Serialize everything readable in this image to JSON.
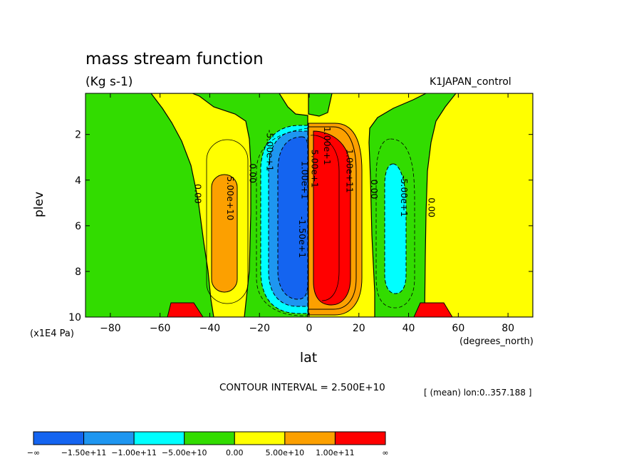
{
  "chart_data": {
    "type": "contour",
    "title": "mass stream function",
    "units": "(Kg s-1)",
    "run_label": "K1JAPAN_control",
    "xlabel": "lat",
    "x_units": "(degrees_north)",
    "ylabel": "plev",
    "y_units": "(x1E4 Pa)",
    "xlim": [
      -90,
      90
    ],
    "ylim": [
      10,
      0.2
    ],
    "x_ticks": [
      -80,
      -60,
      -40,
      -20,
      0,
      20,
      40,
      60,
      80
    ],
    "x_tick_labels": [
      "−80",
      "−60",
      "−40",
      "−20",
      "0",
      "20",
      "40",
      "60",
      "80"
    ],
    "y_ticks": [
      2,
      4,
      6,
      8,
      10
    ],
    "y_tick_labels": [
      "2",
      "4",
      "6",
      "8",
      "10"
    ],
    "contour_interval_text": "CONTOUR INTERVAL = 2.500E+10",
    "mean_note": "[ (mean) lon:0..357.188 ]",
    "contour_labels": [
      {
        "text": "0.00",
        "lat": -46,
        "plev": 4.6
      },
      {
        "text": "5.00e+10",
        "lat": -33,
        "plev": 4.8
      },
      {
        "text": "0.00",
        "lat": -24,
        "plev": 3.7
      },
      {
        "text": "-5.00e+1",
        "lat": -17,
        "plev": 2.7
      },
      {
        "text": "1.00e+1",
        "lat": -3,
        "plev": 4.0
      },
      {
        "text": "-1.50e+1",
        "lat": -4,
        "plev": 6.5
      },
      {
        "text": "5.00e+1",
        "lat": 1,
        "plev": 3.5
      },
      {
        "text": "1.00e+1",
        "lat": 6,
        "plev": 2.5
      },
      {
        "text": "1.00e+11",
        "lat": 15,
        "plev": 3.6
      },
      {
        "text": "0.00",
        "lat": 25,
        "plev": 4.4
      },
      {
        "text": "-5.00e+1",
        "lat": 37,
        "plev": 4.7
      },
      {
        "text": "0.00",
        "lat": 48,
        "plev": 5.2
      }
    ],
    "fields": [
      {
        "name": "southern positive cell",
        "sign": "positive",
        "center_lat": -33,
        "center_plev": 6.2,
        "peak_value": 60000000000.0
      },
      {
        "name": "southern Hadley cell",
        "sign": "negative",
        "center_lat": -10,
        "center_plev": 6.0,
        "peak_value": -170000000000.0
      },
      {
        "name": "northern Hadley cell",
        "sign": "positive",
        "center_lat": 10,
        "center_plev": 5.8,
        "peak_value": 160000000000.0
      },
      {
        "name": "northern negative cell",
        "sign": "negative",
        "center_lat": 35,
        "center_plev": 6.0,
        "peak_value": -60000000000.0
      }
    ],
    "topography": [
      {
        "lat_min": -58,
        "lat_max": -40
      },
      {
        "lat_min": 42,
        "lat_max": 59
      }
    ],
    "colorbar": {
      "colors": [
        "#1464f0",
        "#1e96f0",
        "#00ffff",
        "#32dc00",
        "#ffff00",
        "#fca000",
        "#ff0000"
      ],
      "labels": [
        "−∞",
        "−1.50e+11",
        "−1.00e+11",
        "−5.00e+10",
        "0.00",
        "5.00e+10",
        "1.00e+11",
        "∞"
      ]
    }
  }
}
